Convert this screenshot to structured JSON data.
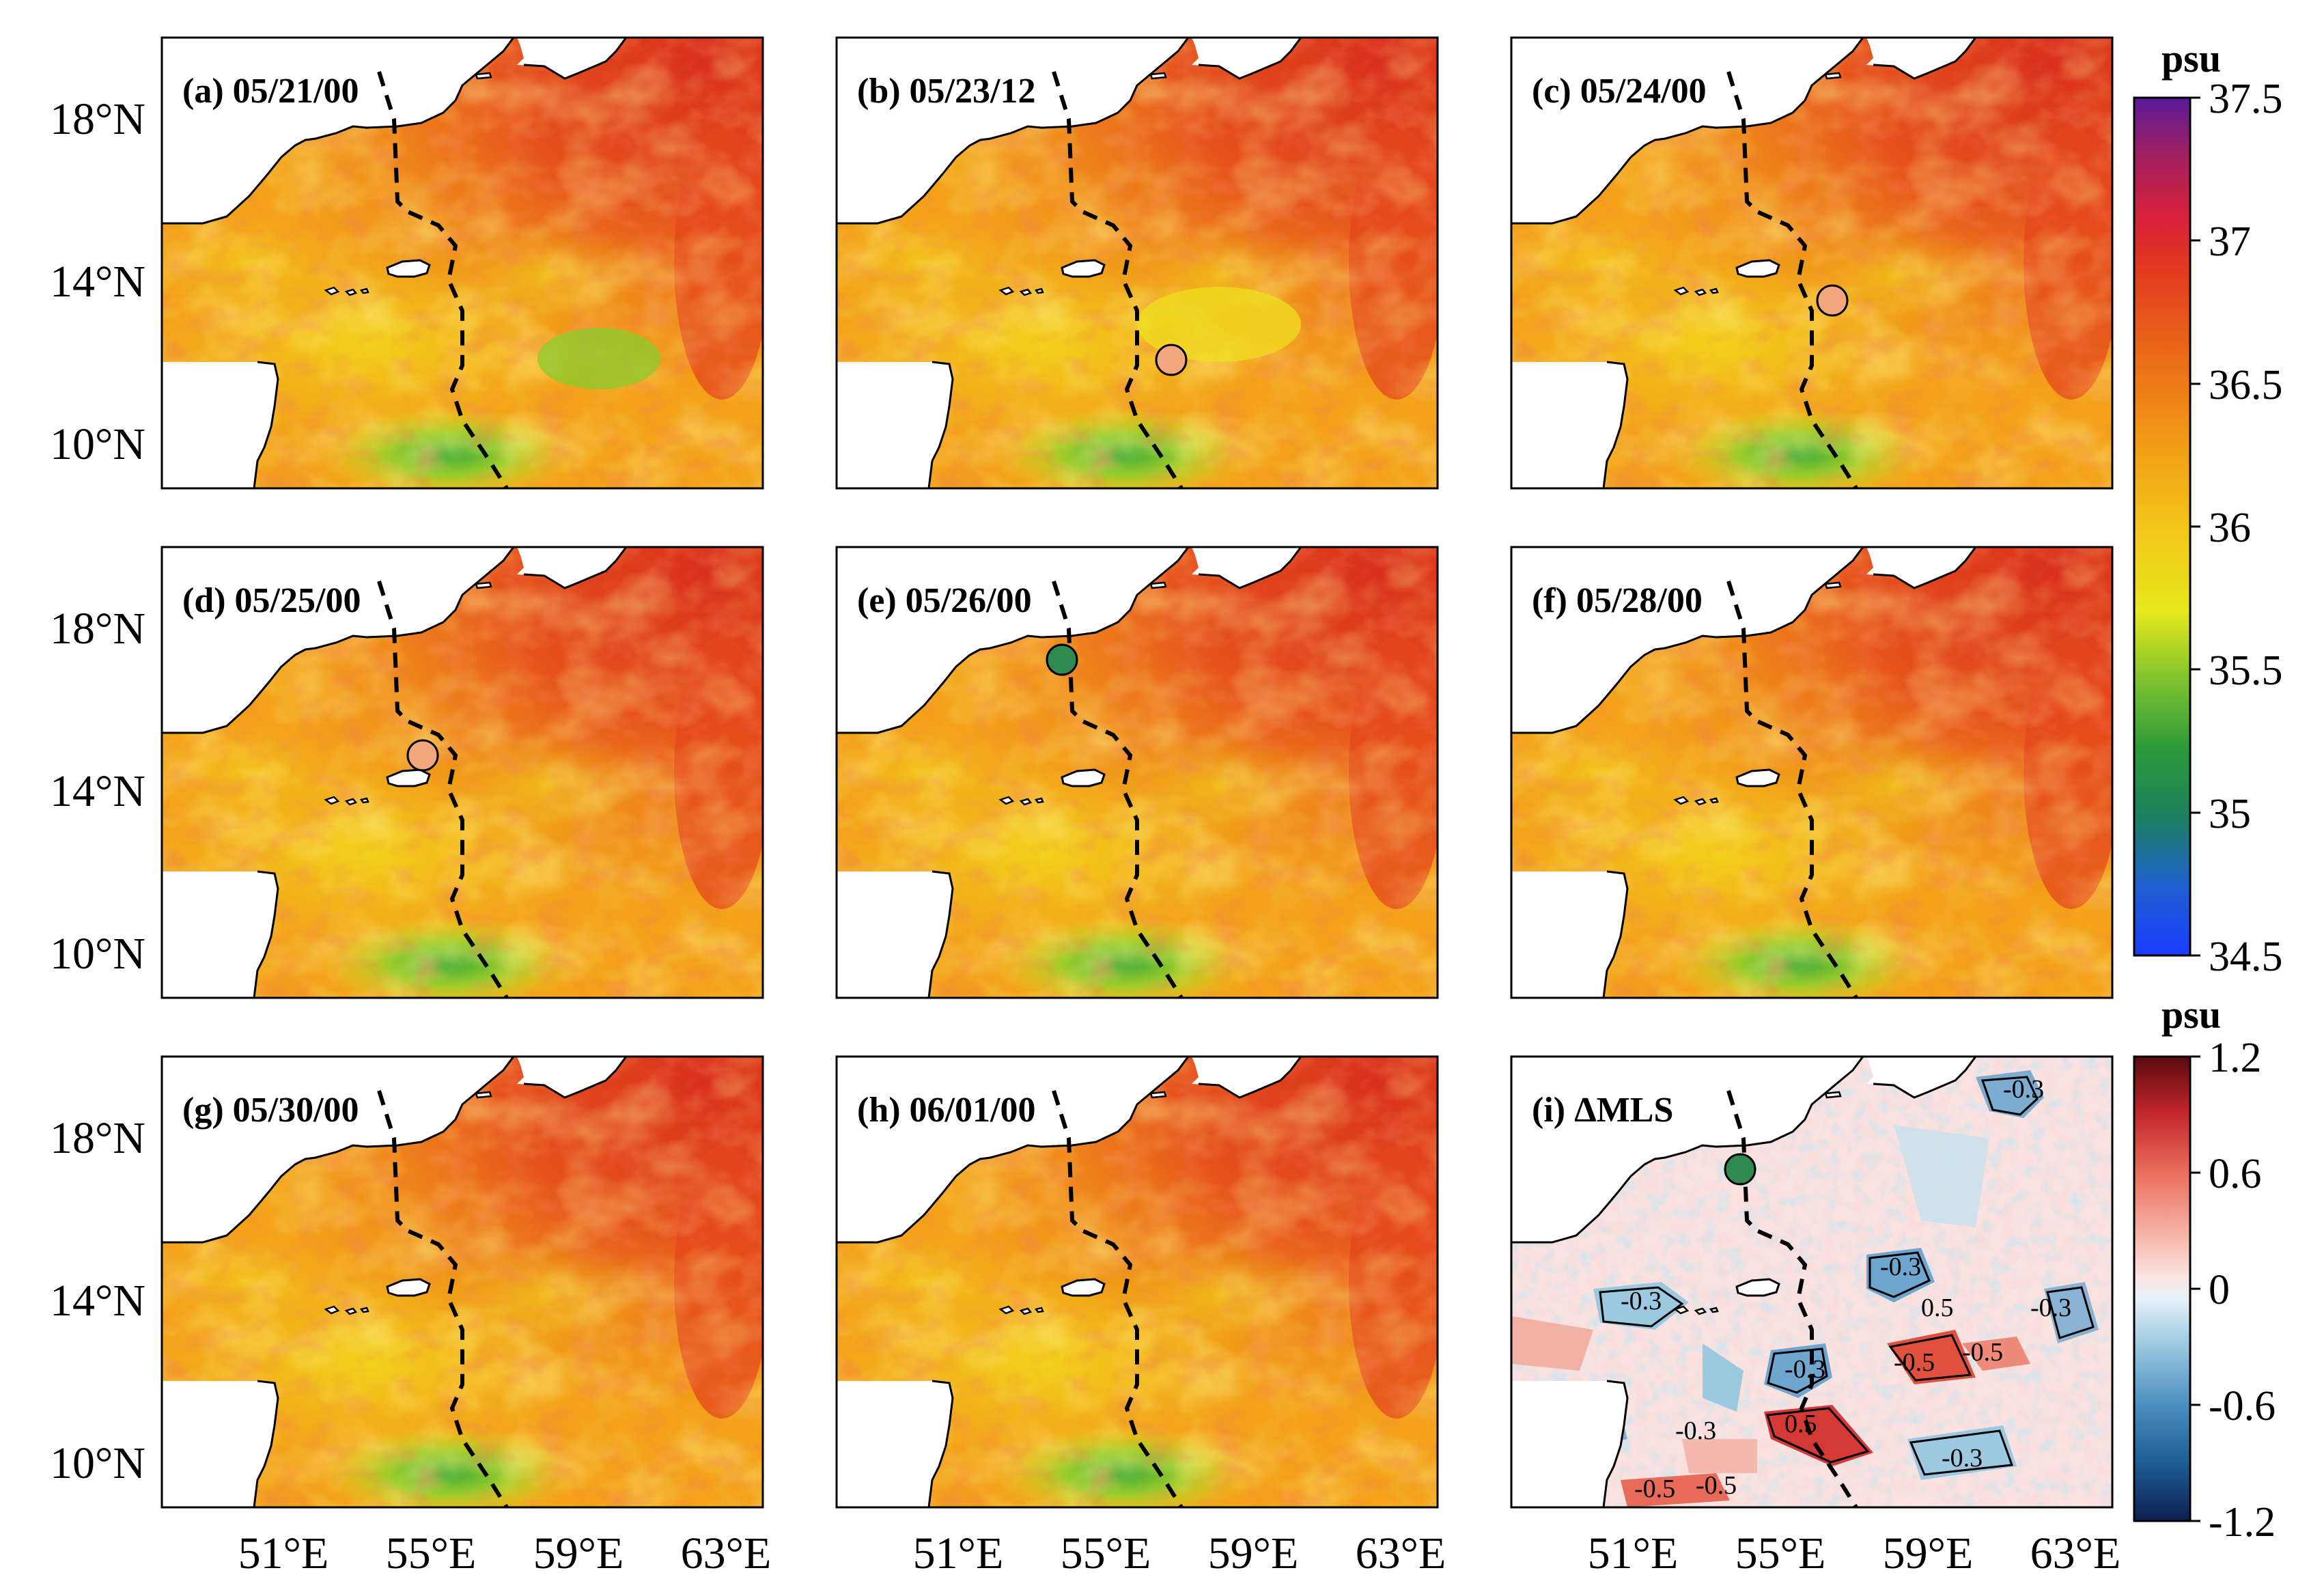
{
  "figure": {
    "lat_ticks": [
      "18°N",
      "14°N",
      "10°N"
    ],
    "lon_ticks": [
      "51°E",
      "55°E",
      "59°E",
      "63°E"
    ],
    "colors": {
      "salt_high": "#d62a1c",
      "salt_mid": "#f39a12",
      "salt_low": "#e6e01e",
      "salt_fresh": "#3fae35",
      "land": "#ffffff",
      "coast": "#000000",
      "track": "#000000",
      "marker_orange": "#f2a77e",
      "marker_green": "#2f8a4f"
    }
  },
  "panels": [
    {
      "label": "(a) 05/21/00",
      "marker": "none"
    },
    {
      "label": "(b) 05/23/12",
      "marker": "orange-circle"
    },
    {
      "label": "(c) 05/24/00",
      "marker": "orange-circle"
    },
    {
      "label": "(d) 05/25/00",
      "marker": "orange-circle"
    },
    {
      "label": "(e) 05/26/00",
      "marker": "green-circle"
    },
    {
      "label": "(f) 05/28/00",
      "marker": "none"
    },
    {
      "label": "(g) 05/30/00",
      "marker": "none"
    },
    {
      "label": "(h) 06/01/00",
      "marker": "none"
    },
    {
      "label": "(i) ΔMLS",
      "marker": "green-circle"
    }
  ],
  "contour_labels": [
    "-0.3",
    "-0.3",
    "-0.3",
    "-0.3",
    "-0.3",
    "-0.3",
    "-0.5",
    "-0.5",
    "-0.5",
    "-0.5",
    "0.5",
    "0.5",
    "-0.3"
  ],
  "colorbar_salinity": {
    "unit": "psu",
    "ticks": [
      "37.5",
      "37",
      "36.5",
      "36",
      "35.5",
      "35",
      "34.5"
    ],
    "range": [
      34.5,
      37.5
    ]
  },
  "colorbar_delta": {
    "unit": "psu",
    "ticks": [
      "1.2",
      "0.6",
      "0",
      "-0.6",
      "-1.2"
    ],
    "range": [
      -1.2,
      1.2
    ]
  }
}
